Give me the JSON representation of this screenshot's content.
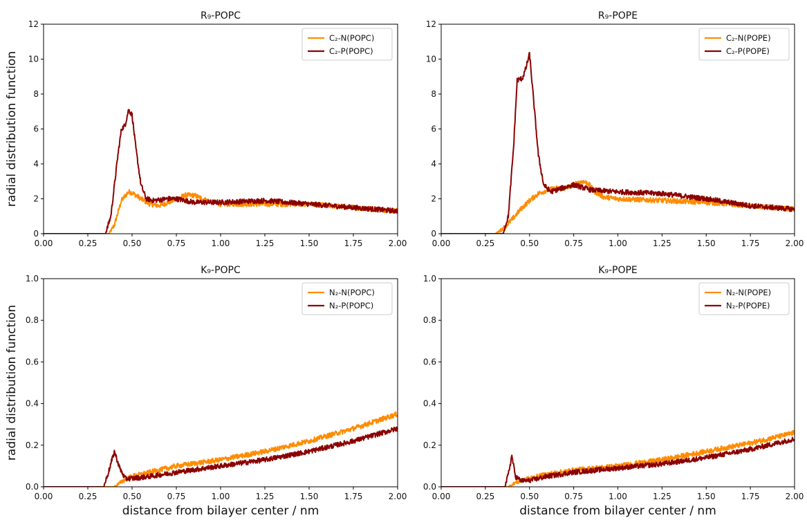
{
  "figure": {
    "ylabel": "radial distribution function",
    "xlabel": "distance from bilayer center / nm"
  },
  "colors": {
    "orange": "#FF8C00",
    "darkred": "#8B0000",
    "axis": "#000000",
    "background": "#ffffff"
  },
  "chart_data": [
    {
      "type": "line",
      "title": "R₉-POPC",
      "xlim": [
        0,
        2
      ],
      "ylim": [
        0,
        12
      ],
      "xticks": [
        "0.00",
        "0.25",
        "0.50",
        "0.75",
        "1.00",
        "1.25",
        "1.50",
        "1.75",
        "2.00"
      ],
      "yticks": [
        "0",
        "2",
        "4",
        "6",
        "8",
        "10",
        "12"
      ],
      "legend": "top-right",
      "series": [
        {
          "name": "C₂-N(POPC)",
          "color": "#FF8C00",
          "x": [
            0,
            0.37,
            0.4,
            0.44,
            0.48,
            0.5,
            0.55,
            0.6,
            0.65,
            0.72,
            0.8,
            0.85,
            0.9,
            0.95,
            1.0,
            1.25,
            1.5,
            1.75,
            2.0
          ],
          "y": [
            0,
            0,
            0.5,
            1.9,
            2.4,
            2.35,
            2.0,
            1.7,
            1.6,
            1.85,
            2.2,
            2.2,
            2.0,
            1.8,
            1.7,
            1.7,
            1.7,
            1.5,
            1.3
          ]
        },
        {
          "name": "C₂-P(POPC)",
          "color": "#8B0000",
          "x": [
            0,
            0.35,
            0.38,
            0.42,
            0.44,
            0.46,
            0.48,
            0.5,
            0.52,
            0.55,
            0.58,
            0.62,
            0.7,
            0.75,
            0.85,
            1.0,
            1.25,
            1.5,
            1.75,
            2.0
          ],
          "y": [
            0,
            0,
            1.0,
            4.5,
            6.0,
            6.2,
            7.1,
            6.8,
            5.0,
            2.8,
            2.0,
            1.9,
            2.0,
            2.0,
            1.8,
            1.8,
            1.9,
            1.7,
            1.5,
            1.3
          ]
        }
      ]
    },
    {
      "type": "line",
      "title": "R₉-POPE",
      "xlim": [
        0,
        2
      ],
      "ylim": [
        0,
        12
      ],
      "xticks": [
        "0.00",
        "0.25",
        "0.50",
        "0.75",
        "1.00",
        "1.25",
        "1.50",
        "1.75",
        "2.00"
      ],
      "yticks": [
        "0",
        "2",
        "4",
        "6",
        "8",
        "10",
        "12"
      ],
      "legend": "top-right",
      "series": [
        {
          "name": "C₂-N(POPE)",
          "color": "#FF8C00",
          "x": [
            0,
            0.31,
            0.35,
            0.4,
            0.45,
            0.5,
            0.55,
            0.6,
            0.65,
            0.7,
            0.75,
            0.8,
            0.83,
            0.87,
            0.92,
            1.0,
            1.25,
            1.5,
            1.75,
            2.0
          ],
          "y": [
            0,
            0,
            0.3,
            0.8,
            1.4,
            1.9,
            2.3,
            2.5,
            2.6,
            2.6,
            2.8,
            3.0,
            2.9,
            2.4,
            2.1,
            2.0,
            1.9,
            1.8,
            1.6,
            1.4
          ]
        },
        {
          "name": "C₂-P(POPE)",
          "color": "#8B0000",
          "x": [
            0,
            0.35,
            0.38,
            0.41,
            0.43,
            0.46,
            0.48,
            0.5,
            0.52,
            0.55,
            0.58,
            0.62,
            0.68,
            0.75,
            0.85,
            1.0,
            1.25,
            1.5,
            1.75,
            2.0
          ],
          "y": [
            0,
            0,
            1.0,
            5.0,
            8.8,
            8.9,
            9.5,
            10.3,
            8.0,
            4.5,
            2.8,
            2.4,
            2.6,
            2.8,
            2.5,
            2.4,
            2.3,
            2.0,
            1.6,
            1.4
          ]
        }
      ]
    },
    {
      "type": "line",
      "title": "K₉-POPC",
      "xlim": [
        0,
        2
      ],
      "ylim": [
        0,
        1
      ],
      "xticks": [
        "0.00",
        "0.25",
        "0.50",
        "0.75",
        "1.00",
        "1.25",
        "1.50",
        "1.75",
        "2.00"
      ],
      "yticks": [
        "0.0",
        "0.2",
        "0.4",
        "0.6",
        "0.8",
        "1.0"
      ],
      "legend": "top-right",
      "series": [
        {
          "name": "N₂-N(POPC)",
          "color": "#FF8C00",
          "x": [
            0,
            0.4,
            0.45,
            0.5,
            0.6,
            0.75,
            1.0,
            1.25,
            1.5,
            1.75,
            2.0
          ],
          "y": [
            0,
            0,
            0.03,
            0.05,
            0.07,
            0.1,
            0.13,
            0.17,
            0.22,
            0.28,
            0.35
          ]
        },
        {
          "name": "N₂-P(POPC)",
          "color": "#8B0000",
          "x": [
            0,
            0.34,
            0.37,
            0.4,
            0.43,
            0.46,
            0.5,
            0.6,
            0.75,
            1.0,
            1.25,
            1.5,
            1.75,
            2.0
          ],
          "y": [
            0,
            0,
            0.08,
            0.17,
            0.09,
            0.04,
            0.04,
            0.05,
            0.07,
            0.1,
            0.13,
            0.17,
            0.22,
            0.28
          ]
        }
      ]
    },
    {
      "type": "line",
      "title": "K₉-POPE",
      "xlim": [
        0,
        2
      ],
      "ylim": [
        0,
        1
      ],
      "xticks": [
        "0.00",
        "0.25",
        "0.50",
        "0.75",
        "1.00",
        "1.25",
        "1.50",
        "1.75",
        "2.00"
      ],
      "yticks": [
        "0.0",
        "0.2",
        "0.4",
        "0.6",
        "0.8",
        "1.0"
      ],
      "legend": "top-right",
      "series": [
        {
          "name": "N₂-N(POPE)",
          "color": "#FF8C00",
          "x": [
            0,
            0.38,
            0.42,
            0.5,
            0.6,
            0.75,
            1.0,
            1.25,
            1.5,
            1.75,
            2.0
          ],
          "y": [
            0,
            0,
            0.02,
            0.04,
            0.06,
            0.08,
            0.1,
            0.13,
            0.17,
            0.21,
            0.26
          ]
        },
        {
          "name": "N₂-P(POPE)",
          "color": "#8B0000",
          "x": [
            0,
            0.36,
            0.38,
            0.4,
            0.42,
            0.45,
            0.5,
            0.6,
            0.75,
            1.0,
            1.25,
            1.5,
            1.75,
            2.0
          ],
          "y": [
            0,
            0,
            0.06,
            0.15,
            0.05,
            0.03,
            0.03,
            0.05,
            0.07,
            0.09,
            0.11,
            0.14,
            0.18,
            0.23
          ]
        }
      ]
    }
  ]
}
